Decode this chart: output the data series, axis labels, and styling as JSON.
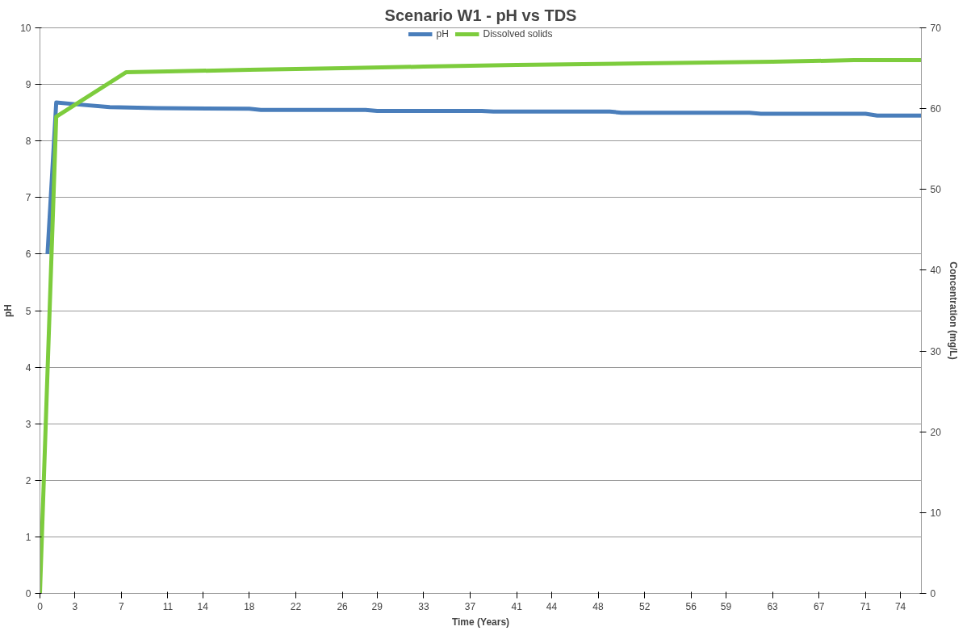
{
  "chart_data": {
    "type": "line",
    "title": "Scenario W1 - pH vs TDS",
    "xlabel": "Time (Years)",
    "ylabel": "pH",
    "y2label": "Concentration (mg/L)",
    "xlim": [
      0,
      75.8
    ],
    "xticks": [
      0,
      3,
      7,
      11,
      14,
      18,
      22,
      26,
      29,
      33,
      37,
      41,
      44,
      48,
      52,
      56,
      59,
      63,
      67,
      71,
      74
    ],
    "ylim": [
      0,
      10
    ],
    "yticks": [
      0,
      1,
      2,
      3,
      4,
      5,
      6,
      7,
      8,
      9,
      10
    ],
    "y2lim": [
      0,
      70
    ],
    "y2ticks": [
      0,
      10,
      20,
      30,
      40,
      50,
      60,
      70
    ],
    "grid": "y",
    "legend": "top",
    "line_style": "solid",
    "marker": "none",
    "series": [
      {
        "name": "pH",
        "color": "#4a7ebb",
        "x": [
          0.65,
          1.4,
          3,
          6,
          10,
          18,
          19,
          28,
          29,
          38,
          39,
          49,
          50,
          61,
          62,
          71,
          72,
          75.8
        ],
        "values": [
          6.0,
          8.68,
          8.65,
          8.6,
          8.58,
          8.57,
          8.55,
          8.55,
          8.53,
          8.53,
          8.52,
          8.52,
          8.5,
          8.5,
          8.48,
          8.48,
          8.45,
          8.45
        ]
      },
      {
        "name": "Dissolved solids",
        "color": "#7dcc3d",
        "axis": "y2",
        "x": [
          0,
          1.4,
          7.4,
          11,
          18,
          26,
          33,
          41,
          52,
          63,
          70,
          75.8
        ],
        "values": [
          0,
          59,
          64.5,
          64.6,
          64.8,
          65,
          65.2,
          65.4,
          65.6,
          65.8,
          66,
          66
        ]
      }
    ]
  }
}
